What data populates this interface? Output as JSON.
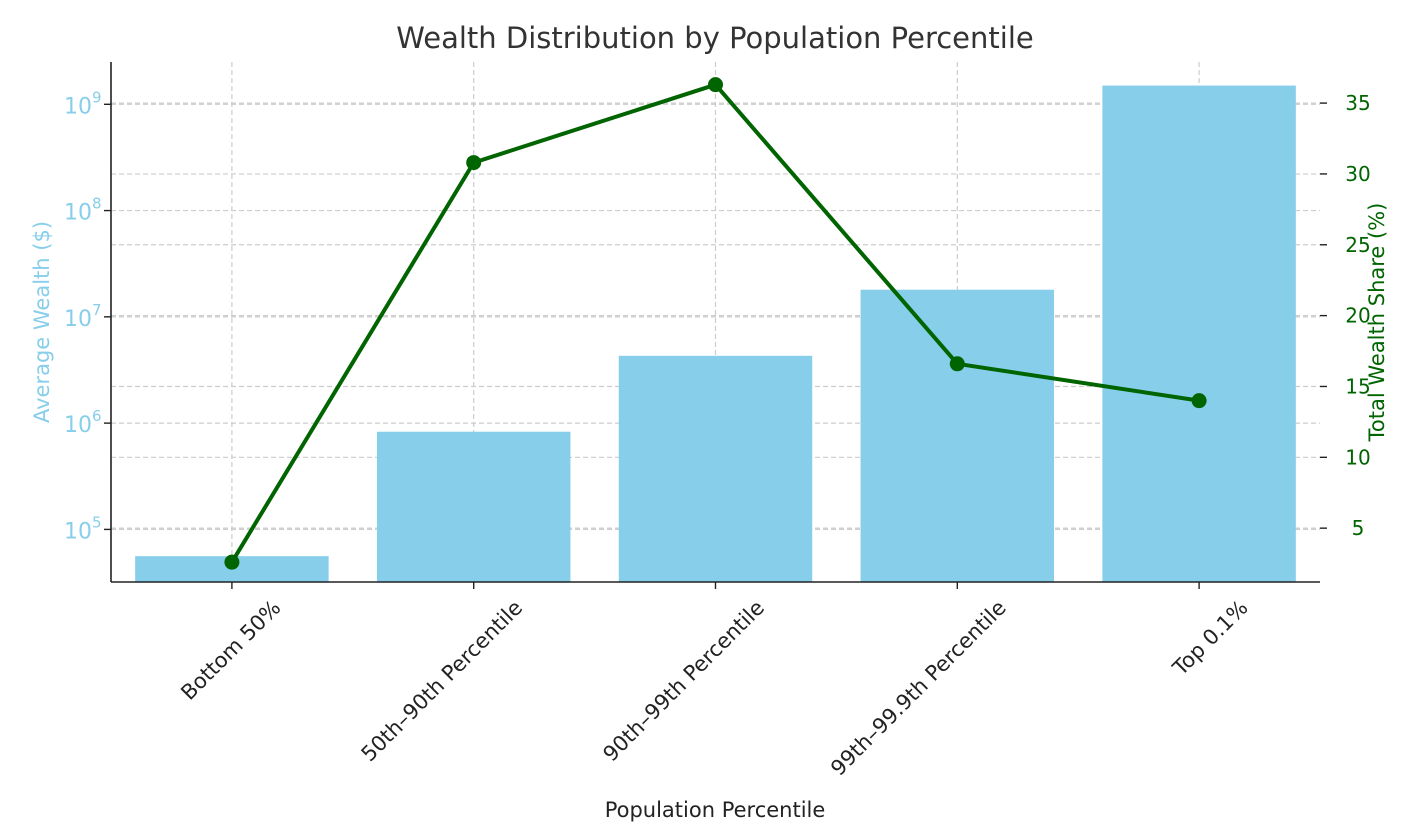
{
  "chart_data": {
    "type": "bar",
    "title": "Wealth Distribution by Population Percentile",
    "xlabel": "Population Percentile",
    "ylabel": "Average Wealth ($)",
    "y2label": "Total Wealth Share (%)",
    "categories": [
      "Bottom 50%",
      "50th–90th Percentile",
      "90th–99th Percentile",
      "99th–99.9th Percentile",
      "Top 0.1%"
    ],
    "y_scale": "log",
    "ylim": [
      32000,
      2500000000
    ],
    "yticks": [
      {
        "base": "10",
        "exp": "5",
        "value": 100000
      },
      {
        "base": "10",
        "exp": "6",
        "value": 1000000
      },
      {
        "base": "10",
        "exp": "7",
        "value": 10000000
      },
      {
        "base": "10",
        "exp": "8",
        "value": 100000000
      },
      {
        "base": "10",
        "exp": "9",
        "value": 1000000000
      }
    ],
    "y2lim": [
      1.2,
      37.9
    ],
    "y2ticks": [
      "5",
      "10",
      "15",
      "20",
      "25",
      "30",
      "35"
    ],
    "grid": true,
    "series": [
      {
        "kind": "bar",
        "axis": "left",
        "color": "#87CEEB",
        "values": [
          56000,
          830000,
          4300000,
          18000000,
          1500000000
        ]
      },
      {
        "kind": "line",
        "axis": "right",
        "color": "#006400",
        "marker": "circle",
        "values": [
          2.6,
          30.8,
          36.3,
          16.6,
          14.0
        ]
      }
    ]
  }
}
